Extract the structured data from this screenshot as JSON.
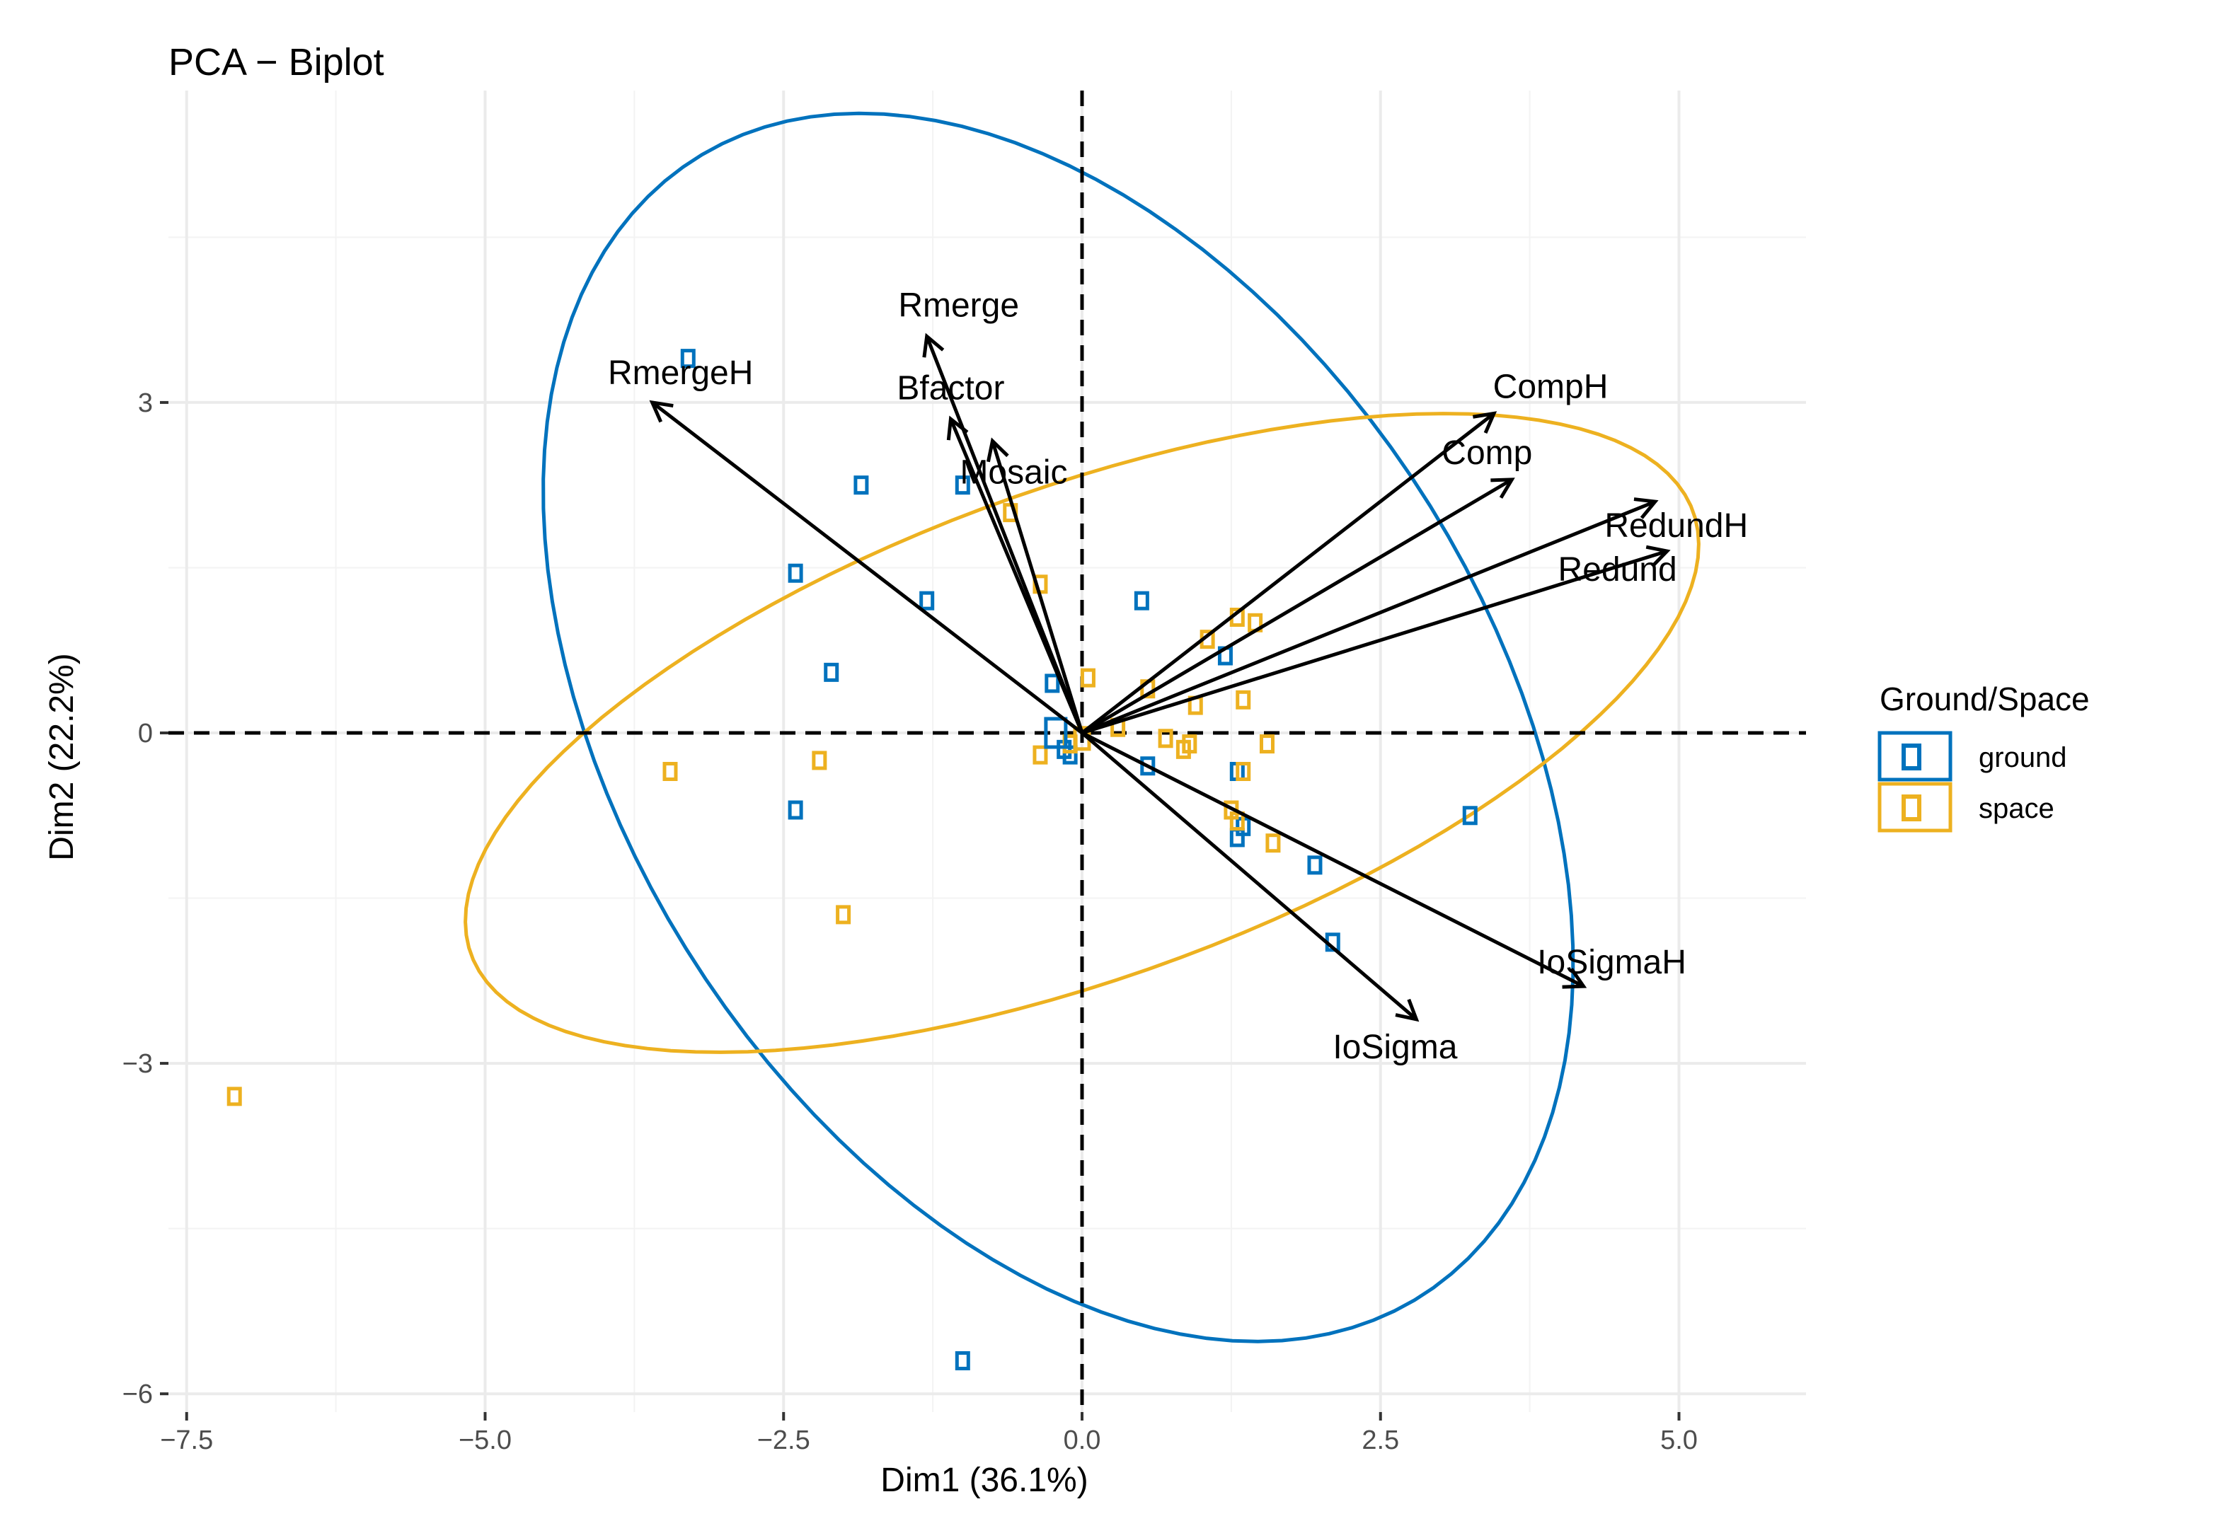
{
  "chart_data": {
    "type": "scatter",
    "subtype": "pca-biplot",
    "title": "PCA − Biplot",
    "xlabel": "Dim1 (36.1%)",
    "ylabel": "Dim2 (22.2%)",
    "xlim": [
      -7.5,
      6.0
    ],
    "ylim": [
      -6.0,
      5.5
    ],
    "x_ticks": [
      -7.5,
      -5.0,
      -2.5,
      0.0,
      2.5,
      5.0
    ],
    "x_tick_labels": [
      "−7.5",
      "−5.0",
      "−2.5",
      "0.0",
      "2.5",
      "5.0"
    ],
    "y_ticks": [
      -6,
      -3,
      0,
      3
    ],
    "y_tick_labels": [
      "−6",
      "−3",
      "0",
      "3"
    ],
    "grid": true,
    "legend": {
      "title": "Ground/Space",
      "position": "right",
      "entries": [
        {
          "label": "ground",
          "color": "#0072BD"
        },
        {
          "label": "space",
          "color": "#EDB120"
        }
      ]
    },
    "series": [
      {
        "name": "ground",
        "color": "#0072BD",
        "points": [
          [
            -3.3,
            3.4
          ],
          [
            -1.85,
            2.25
          ],
          [
            -1.0,
            2.25
          ],
          [
            -2.4,
            1.45
          ],
          [
            -1.3,
            1.2
          ],
          [
            -2.1,
            0.55
          ],
          [
            -2.4,
            -0.7
          ],
          [
            -0.25,
            0.45
          ],
          [
            -0.15,
            -0.15
          ],
          [
            -0.1,
            -0.2
          ],
          [
            0.5,
            1.2
          ],
          [
            1.2,
            0.7
          ],
          [
            0.55,
            -0.3
          ],
          [
            1.3,
            -0.35
          ],
          [
            1.35,
            -0.85
          ],
          [
            1.3,
            -0.95
          ],
          [
            1.95,
            -1.2
          ],
          [
            2.1,
            -1.9
          ],
          [
            3.25,
            -0.75
          ],
          [
            -1.0,
            -5.7
          ]
        ],
        "ellipse": {
          "center": [
            -0.2,
            0.05
          ],
          "semi_axes": [
            6.0,
            3.7
          ],
          "angle_deg": -62
        }
      },
      {
        "name": "space",
        "color": "#EDB120",
        "points": [
          [
            -3.45,
            -0.35
          ],
          [
            -2.2,
            -0.25
          ],
          [
            -2.0,
            -1.65
          ],
          [
            -7.1,
            -3.3
          ],
          [
            -0.6,
            2.0
          ],
          [
            -0.35,
            1.35
          ],
          [
            -0.35,
            -0.2
          ],
          [
            -0.1,
            -0.1
          ],
          [
            0.05,
            0.5
          ],
          [
            0.3,
            0.05
          ],
          [
            0.55,
            0.4
          ],
          [
            0.7,
            -0.05
          ],
          [
            0.85,
            -0.15
          ],
          [
            0.9,
            -0.1
          ],
          [
            0.95,
            0.25
          ],
          [
            1.05,
            0.85
          ],
          [
            1.3,
            1.05
          ],
          [
            1.45,
            1.0
          ],
          [
            1.35,
            0.3
          ],
          [
            1.55,
            -0.1
          ],
          [
            1.35,
            -0.35
          ],
          [
            1.25,
            -0.7
          ],
          [
            1.3,
            -0.8
          ],
          [
            1.6,
            -1.0
          ]
        ],
        "ellipse": {
          "center": [
            0.0,
            0.0
          ],
          "semi_axes": [
            5.5,
            2.2
          ],
          "angle_deg": 22
        }
      }
    ],
    "variables": [
      {
        "name": "Rmerge",
        "x": -1.3,
        "y": 3.6
      },
      {
        "name": "RmergeH",
        "x": -3.6,
        "y": 3.0
      },
      {
        "name": "Bfactor",
        "x": -1.1,
        "y": 2.85
      },
      {
        "name": "Mosaic",
        "x": -0.75,
        "y": 2.65
      },
      {
        "name": "CompH",
        "x": 3.45,
        "y": 2.9
      },
      {
        "name": "Comp",
        "x": 3.6,
        "y": 2.3
      },
      {
        "name": "RedundH",
        "x": 4.8,
        "y": 2.1
      },
      {
        "name": "Redund",
        "x": 4.9,
        "y": 1.65
      },
      {
        "name": "IoSigmaH",
        "x": 4.2,
        "y": -2.3
      },
      {
        "name": "IoSigma",
        "x": 2.8,
        "y": -2.6
      }
    ]
  }
}
